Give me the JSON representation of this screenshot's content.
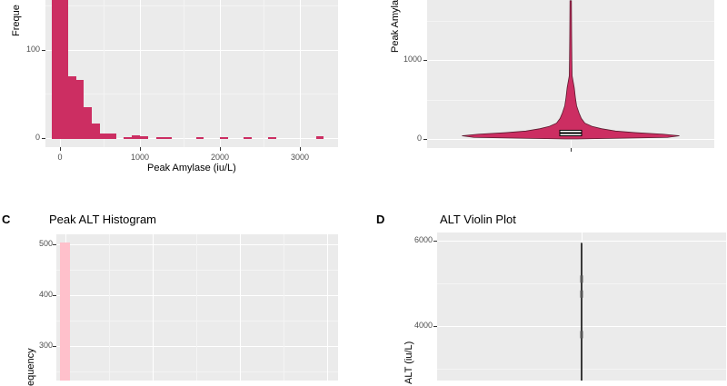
{
  "chart_data": [
    {
      "id": "A",
      "type": "bar",
      "panel_letter": "",
      "title": "",
      "xlabel": "Peak Amylase (iu/L)",
      "ylabel": "Freque",
      "x_ticks": [
        "0",
        "1000",
        "2000",
        "3000"
      ],
      "y_ticks": [
        "0",
        "100"
      ],
      "xlim": [
        -120,
        3350
      ],
      "ylim": [
        0,
        175
      ],
      "fill_color": "#cc2e62",
      "bin_width": 100,
      "bins": [
        {
          "x": -50,
          "count": 175
        },
        {
          "x": 50,
          "count": 175
        },
        {
          "x": 150,
          "count": 70
        },
        {
          "x": 250,
          "count": 66
        },
        {
          "x": 350,
          "count": 35
        },
        {
          "x": 450,
          "count": 17
        },
        {
          "x": 550,
          "count": 5
        },
        {
          "x": 650,
          "count": 5
        },
        {
          "x": 850,
          "count": 1
        },
        {
          "x": 950,
          "count": 3
        },
        {
          "x": 1050,
          "count": 2
        },
        {
          "x": 1250,
          "count": 1
        },
        {
          "x": 1350,
          "count": 1
        },
        {
          "x": 1750,
          "count": 1
        },
        {
          "x": 2050,
          "count": 1
        },
        {
          "x": 2350,
          "count": 1
        },
        {
          "x": 2650,
          "count": 1
        },
        {
          "x": 3250,
          "count": 2
        }
      ]
    },
    {
      "id": "B",
      "type": "violin",
      "panel_letter": "",
      "title": "",
      "ylabel": "Peak Amyla",
      "y_ticks": [
        "0",
        "1000"
      ],
      "ylim": [
        -120,
        1750
      ],
      "fill_color": "#cc2e62",
      "profile": [
        {
          "y": 0,
          "w": 0.05
        },
        {
          "y": 20,
          "w": 0.82
        },
        {
          "y": 40,
          "w": 0.92
        },
        {
          "y": 60,
          "w": 0.78
        },
        {
          "y": 80,
          "w": 0.55
        },
        {
          "y": 100,
          "w": 0.38
        },
        {
          "y": 130,
          "w": 0.26
        },
        {
          "y": 160,
          "w": 0.18
        },
        {
          "y": 200,
          "w": 0.12
        },
        {
          "y": 260,
          "w": 0.09
        },
        {
          "y": 330,
          "w": 0.07
        },
        {
          "y": 420,
          "w": 0.05
        },
        {
          "y": 520,
          "w": 0.04
        },
        {
          "y": 650,
          "w": 0.03
        },
        {
          "y": 800,
          "w": 0.012
        },
        {
          "y": 1000,
          "w": 0.01
        },
        {
          "y": 1300,
          "w": 0.008
        },
        {
          "y": 1750,
          "w": 0.006
        }
      ],
      "box": {
        "q1": 40,
        "median": 75,
        "q3": 110
      }
    },
    {
      "id": "C",
      "type": "bar",
      "panel_letter": "C",
      "title": "Peak ALT Histogram",
      "ylabel": "equency",
      "y_ticks": [
        "300",
        "400",
        "500"
      ],
      "ylim": [
        230,
        535
      ],
      "xlim": [
        -200,
        6200
      ],
      "fill_color": "#ffc0cb",
      "bins": [
        {
          "x": 50,
          "count": 503
        }
      ]
    },
    {
      "id": "D",
      "type": "violin",
      "panel_letter": "D",
      "title": "ALT Violin Plot",
      "ylabel": "ALT (iu/L)",
      "y_ticks": [
        "4000",
        "6000"
      ],
      "ylim": [
        2800,
        6300
      ],
      "max_value": 5950,
      "point_values": [
        5100,
        4750,
        3800
      ]
    }
  ]
}
